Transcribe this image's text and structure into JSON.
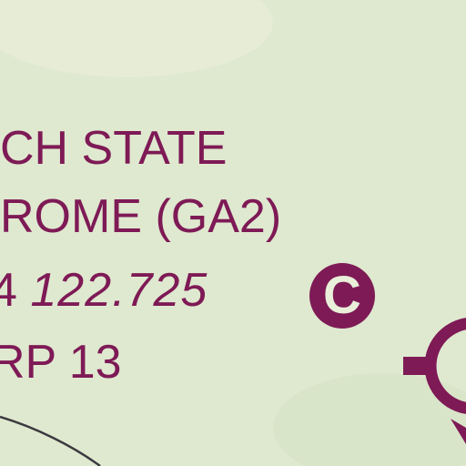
{
  "map": {
    "background_color": "#dfe9cf",
    "label_color": "#7e1a56",
    "airfield_label": {
      "line1": "CH STATE",
      "line2": "ROME (GA2)",
      "line3_prefix": "4",
      "frequency": "122.725",
      "ctaf_symbol": "C",
      "line4": "RP 13"
    },
    "symbols": [
      "airport-symbol-partial",
      "road-line"
    ]
  }
}
